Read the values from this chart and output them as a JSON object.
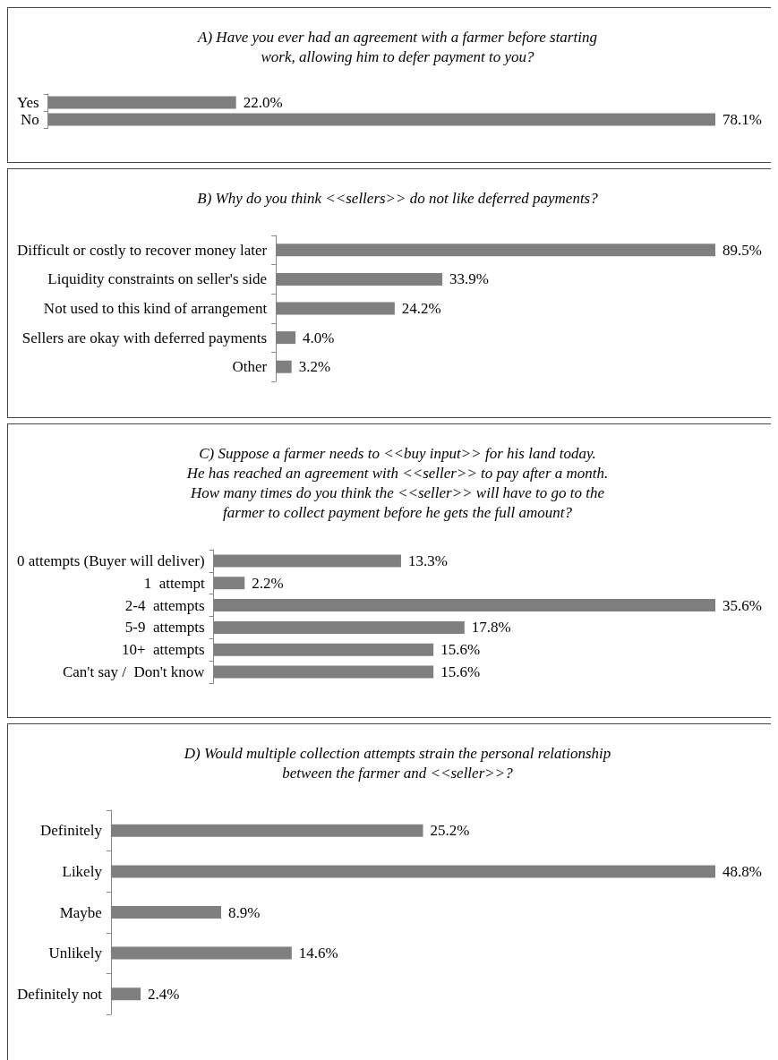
{
  "chart_data": [
    {
      "type": "bar",
      "orientation": "horizontal",
      "title": "A) Have you ever had an agreement with a farmer before starting\nwork, allowing him to defer payment to you?",
      "categories": [
        "Yes",
        "No"
      ],
      "values": [
        22.0,
        78.1
      ],
      "value_labels": [
        "22.0%",
        "78.1%"
      ],
      "color": "#7f7f7f"
    },
    {
      "type": "bar",
      "orientation": "horizontal",
      "title": "B) Why do you think <<sellers>> do not like deferred payments?",
      "categories": [
        "Difficult or costly to recover money later",
        "Liquidity constraints on seller's side",
        "Not used to this kind of arrangement",
        "Sellers are okay with deferred payments",
        "Other"
      ],
      "values": [
        89.5,
        33.9,
        24.2,
        4.0,
        3.2
      ],
      "value_labels": [
        "89.5%",
        "33.9%",
        "24.2%",
        "4.0%",
        "3.2%"
      ],
      "color": "#7f7f7f"
    },
    {
      "type": "bar",
      "orientation": "horizontal",
      "title": "C) Suppose a farmer needs to <<buy input>> for his land today.\nHe has reached an agreement with <<seller>> to pay after a month.\nHow many times do you think the <<seller>> will have to go to the\nfarmer to collect payment before he gets the full amount?",
      "categories": [
        "0 attempts (Buyer will deliver)",
        "1  attempt",
        "2-4  attempts",
        "5-9  attempts",
        "10+  attempts",
        "Can't say /  Don't know"
      ],
      "values": [
        13.3,
        2.2,
        35.6,
        17.8,
        15.6,
        15.6
      ],
      "value_labels": [
        "13.3%",
        "2.2%",
        "35.6%",
        "17.8%",
        "15.6%",
        "15.6%"
      ],
      "color": "#7f7f7f"
    },
    {
      "type": "bar",
      "orientation": "horizontal",
      "title": "D) Would multiple collection attempts strain the personal relationship\nbetween the farmer and <<seller>>?",
      "categories": [
        "Definitely",
        "Likely",
        "Maybe",
        "Unlikely",
        "Definitely not"
      ],
      "values": [
        25.2,
        48.8,
        8.9,
        14.6,
        2.4
      ],
      "value_labels": [
        "25.2%",
        "48.8%",
        "8.9%",
        "14.6%",
        "2.4%"
      ],
      "color": "#7f7f7f"
    }
  ]
}
